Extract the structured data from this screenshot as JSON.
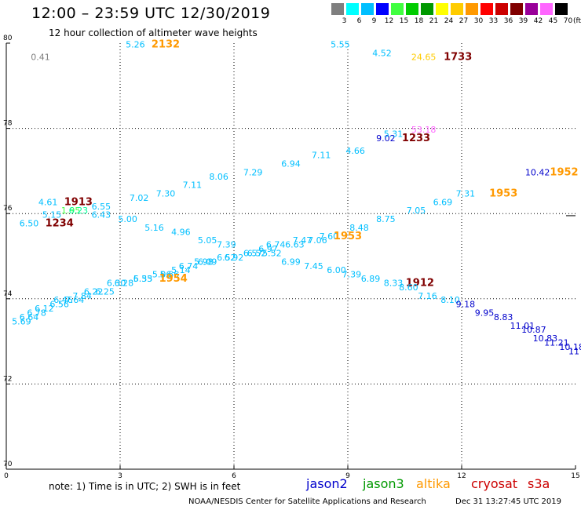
{
  "header": {
    "title": "12:00 – 23:59 UTC 12/30/2019",
    "subtitle": "12 hour collection of altimeter wave heights"
  },
  "colorbar": {
    "colors": [
      "#7f7f7f",
      "#00ffff",
      "#00bfff",
      "#0000ff",
      "#40ff40",
      "#00cc00",
      "#009900",
      "#ffff00",
      "#ffcc00",
      "#ff9900",
      "#ff0000",
      "#cc0000",
      "#800000",
      "#990099",
      "#ff66ff",
      "#000000"
    ],
    "labels": [
      "3",
      "6",
      "9",
      "12",
      "15",
      "18",
      "21",
      "24",
      "27",
      "30",
      "33",
      "36",
      "39",
      "42",
      "45",
      "70"
    ],
    "unit": "(ft)"
  },
  "chart_data": {
    "type": "scatter",
    "xlim": [
      0,
      15
    ],
    "ylim": [
      70,
      80
    ],
    "x_ticks": [
      "0",
      "3",
      "6",
      "9",
      "12",
      "15"
    ],
    "y_ticks": [
      "70",
      "72",
      "74",
      "76",
      "78",
      "80"
    ],
    "grid": true,
    "points": [
      {
        "x": 0.9,
        "y": 79.6,
        "label": "0.41",
        "color": "#808080"
      },
      {
        "x": 3.4,
        "y": 79.9,
        "label": "5.26",
        "color": "#00bfff"
      },
      {
        "x": 4.2,
        "y": 79.9,
        "label": "2132",
        "color": "#ff9900"
      },
      {
        "x": 8.8,
        "y": 79.9,
        "label": "5.55",
        "color": "#00bfff"
      },
      {
        "x": 9.9,
        "y": 79.7,
        "label": "4.52",
        "color": "#00bfff"
      },
      {
        "x": 11.0,
        "y": 79.6,
        "label": "24.65",
        "color": "#ffcc00"
      },
      {
        "x": 11.9,
        "y": 79.6,
        "label": "1733",
        "color": "#800000"
      },
      {
        "x": 11.0,
        "y": 77.9,
        "label": "53.18",
        "color": "#ff66ff"
      },
      {
        "x": 10.0,
        "y": 77.7,
        "label": "9.02",
        "color": "#0000cc"
      },
      {
        "x": 10.2,
        "y": 77.8,
        "label": "5.31",
        "color": "#00bfff"
      },
      {
        "x": 10.8,
        "y": 77.7,
        "label": "1233",
        "color": "#800000"
      },
      {
        "x": 9.2,
        "y": 77.4,
        "label": "4.66",
        "color": "#00bfff"
      },
      {
        "x": 8.3,
        "y": 77.3,
        "label": "7.11",
        "color": "#00bfff"
      },
      {
        "x": 7.5,
        "y": 77.1,
        "label": "6.94",
        "color": "#00bfff"
      },
      {
        "x": 6.5,
        "y": 76.9,
        "label": "7.29",
        "color": "#00bfff"
      },
      {
        "x": 5.6,
        "y": 76.8,
        "label": "8.06",
        "color": "#00bfff"
      },
      {
        "x": 4.9,
        "y": 76.6,
        "label": "7.11",
        "color": "#00bfff"
      },
      {
        "x": 4.2,
        "y": 76.4,
        "label": "7.30",
        "color": "#00bfff"
      },
      {
        "x": 3.5,
        "y": 76.3,
        "label": "7.02",
        "color": "#00bfff"
      },
      {
        "x": 1.1,
        "y": 76.2,
        "label": "4.61",
        "color": "#00bfff"
      },
      {
        "x": 1.9,
        "y": 76.2,
        "label": "1913",
        "color": "#800000"
      },
      {
        "x": 1.7,
        "y": 76.0,
        "label": "1.95",
        "color": "#40ff40"
      },
      {
        "x": 1.9,
        "y": 76.0,
        "label": "6.23",
        "color": "#00ff99"
      },
      {
        "x": 2.5,
        "y": 76.1,
        "label": "6.55",
        "color": "#00bfff"
      },
      {
        "x": 1.2,
        "y": 75.9,
        "label": "5.15",
        "color": "#00bfff"
      },
      {
        "x": 2.5,
        "y": 75.9,
        "label": "6.43",
        "color": "#00bfff"
      },
      {
        "x": 0.6,
        "y": 75.7,
        "label": "6.50",
        "color": "#00bfff"
      },
      {
        "x": 1.4,
        "y": 75.7,
        "label": "1234",
        "color": "#800000"
      },
      {
        "x": 3.2,
        "y": 75.8,
        "label": "5.00",
        "color": "#00bfff"
      },
      {
        "x": 3.9,
        "y": 75.6,
        "label": "5.16",
        "color": "#00bfff"
      },
      {
        "x": 4.6,
        "y": 75.5,
        "label": "4.96",
        "color": "#00bfff"
      },
      {
        "x": 5.3,
        "y": 75.3,
        "label": "5.05",
        "color": "#00bfff"
      },
      {
        "x": 5.8,
        "y": 75.2,
        "label": "7.39",
        "color": "#00bfff"
      },
      {
        "x": 14.0,
        "y": 76.9,
        "label": "10.42",
        "color": "#0000cc"
      },
      {
        "x": 14.7,
        "y": 76.9,
        "label": "1952",
        "color": "#ff9900"
      },
      {
        "x": 12.1,
        "y": 76.4,
        "label": "7.31",
        "color": "#00bfff"
      },
      {
        "x": 13.1,
        "y": 76.4,
        "label": "1953",
        "color": "#ff9900"
      },
      {
        "x": 11.5,
        "y": 76.2,
        "label": "6.69",
        "color": "#00bfff"
      },
      {
        "x": 10.8,
        "y": 76.0,
        "label": "7.05",
        "color": "#00bfff"
      },
      {
        "x": 10.0,
        "y": 75.8,
        "label": "8.75",
        "color": "#00bfff"
      },
      {
        "x": 9.3,
        "y": 75.6,
        "label": "8.48",
        "color": "#00bfff"
      },
      {
        "x": 8.5,
        "y": 75.4,
        "label": "7.60",
        "color": "#00bfff"
      },
      {
        "x": 9.0,
        "y": 75.4,
        "label": "1953",
        "color": "#ff9900"
      },
      {
        "x": 8.2,
        "y": 75.3,
        "label": "7.06",
        "color": "#00bfff"
      },
      {
        "x": 7.8,
        "y": 75.3,
        "label": "7.47",
        "color": "#00bfff"
      },
      {
        "x": 7.6,
        "y": 75.2,
        "label": "6.63",
        "color": "#00bfff"
      },
      {
        "x": 7.1,
        "y": 75.2,
        "label": "6.74",
        "color": "#00bfff"
      },
      {
        "x": 6.9,
        "y": 75.1,
        "label": "6.97",
        "color": "#00bfff"
      },
      {
        "x": 6.6,
        "y": 75.0,
        "label": "6.52",
        "color": "#00bfff"
      },
      {
        "x": 6.5,
        "y": 75.0,
        "label": "6.57",
        "color": "#00bfff"
      },
      {
        "x": 7.0,
        "y": 75.0,
        "label": "5.52",
        "color": "#00bfff"
      },
      {
        "x": 7.5,
        "y": 74.8,
        "label": "6.99",
        "color": "#00bfff"
      },
      {
        "x": 8.1,
        "y": 74.7,
        "label": "7.45",
        "color": "#00bfff"
      },
      {
        "x": 8.7,
        "y": 74.6,
        "label": "6.00",
        "color": "#00bfff"
      },
      {
        "x": 9.1,
        "y": 74.5,
        "label": "7.39",
        "color": "#00bfff"
      },
      {
        "x": 9.6,
        "y": 74.4,
        "label": "6.89",
        "color": "#00bfff"
      },
      {
        "x": 10.2,
        "y": 74.3,
        "label": "8.33",
        "color": "#00bfff"
      },
      {
        "x": 10.9,
        "y": 74.3,
        "label": "1912",
        "color": "#800000"
      },
      {
        "x": 10.6,
        "y": 74.2,
        "label": "8.60",
        "color": "#00bfff"
      },
      {
        "x": 11.1,
        "y": 74.0,
        "label": "7.16",
        "color": "#00bfff"
      },
      {
        "x": 11.7,
        "y": 73.9,
        "label": "8.10",
        "color": "#00bfff"
      },
      {
        "x": 12.1,
        "y": 73.8,
        "label": "9.18",
        "color": "#0000cc"
      },
      {
        "x": 12.6,
        "y": 73.6,
        "label": "9.95",
        "color": "#0000cc"
      },
      {
        "x": 13.1,
        "y": 73.5,
        "label": "8.83",
        "color": "#0000cc"
      },
      {
        "x": 13.6,
        "y": 73.3,
        "label": "11.01",
        "color": "#0000cc"
      },
      {
        "x": 13.9,
        "y": 73.2,
        "label": "10.87",
        "color": "#0000cc"
      },
      {
        "x": 14.2,
        "y": 73.0,
        "label": "10.83",
        "color": "#0000cc"
      },
      {
        "x": 14.5,
        "y": 72.9,
        "label": "11.21",
        "color": "#0000cc"
      },
      {
        "x": 14.9,
        "y": 72.8,
        "label": "10.18",
        "color": "#0000cc"
      },
      {
        "x": 15.0,
        "y": 72.7,
        "label": "11",
        "color": "#0000cc"
      },
      {
        "x": 6.0,
        "y": 74.9,
        "label": "6.92",
        "color": "#00bfff"
      },
      {
        "x": 5.8,
        "y": 74.9,
        "label": "6.52",
        "color": "#00bfff"
      },
      {
        "x": 5.3,
        "y": 74.8,
        "label": "6.09",
        "color": "#00bfff"
      },
      {
        "x": 5.2,
        "y": 74.8,
        "label": "5.98",
        "color": "#00bfff"
      },
      {
        "x": 4.8,
        "y": 74.7,
        "label": "6.74",
        "color": "#00bfff"
      },
      {
        "x": 4.6,
        "y": 74.6,
        "label": "5.14",
        "color": "#00bfff"
      },
      {
        "x": 4.3,
        "y": 74.5,
        "label": "5.66",
        "color": "#00bfff"
      },
      {
        "x": 4.1,
        "y": 74.5,
        "label": "5.06",
        "color": "#00bfff"
      },
      {
        "x": 4.4,
        "y": 74.4,
        "label": "1954",
        "color": "#ff9900"
      },
      {
        "x": 3.6,
        "y": 74.4,
        "label": "6.55",
        "color": "#00bfff"
      },
      {
        "x": 3.6,
        "y": 74.4,
        "label": "5.33",
        "color": "#00bfff"
      },
      {
        "x": 3.1,
        "y": 74.3,
        "label": "6.28",
        "color": "#00bfff"
      },
      {
        "x": 2.9,
        "y": 74.3,
        "label": "6.30",
        "color": "#00bfff"
      },
      {
        "x": 2.6,
        "y": 74.1,
        "label": "6.25",
        "color": "#00bfff"
      },
      {
        "x": 2.3,
        "y": 74.1,
        "label": "6.22",
        "color": "#00bfff"
      },
      {
        "x": 2.0,
        "y": 74.0,
        "label": "7.84",
        "color": "#00bfff"
      },
      {
        "x": 1.8,
        "y": 73.9,
        "label": "7.64",
        "color": "#00bfff"
      },
      {
        "x": 1.5,
        "y": 73.9,
        "label": "6.46",
        "color": "#00bfff"
      },
      {
        "x": 1.4,
        "y": 73.8,
        "label": "6.56",
        "color": "#00bfff"
      },
      {
        "x": 1.0,
        "y": 73.7,
        "label": "6.12",
        "color": "#00bfff"
      },
      {
        "x": 0.8,
        "y": 73.6,
        "label": "6.78",
        "color": "#00bfff"
      },
      {
        "x": 0.6,
        "y": 73.5,
        "label": "6.64",
        "color": "#00bfff"
      },
      {
        "x": 0.4,
        "y": 73.4,
        "label": "5.69",
        "color": "#00bfff"
      }
    ],
    "corner_label": "1"
  },
  "notes": {
    "text": "note:  1) Time is in UTC; 2) SWH is in feet",
    "satellites": [
      {
        "name": "jason2",
        "color": "#0000cc"
      },
      {
        "name": "jason3",
        "color": "#009900"
      },
      {
        "name": "altika",
        "color": "#ff9900"
      },
      {
        "name": "cryosat",
        "color": "#cc0000"
      },
      {
        "name": "s3a",
        "color": "#cc0000"
      }
    ],
    "credit": "NOAA/NESDIS Center for Satellite Applications and Research",
    "timestamp": "Dec 31 13:27:45 UTC 2019"
  }
}
